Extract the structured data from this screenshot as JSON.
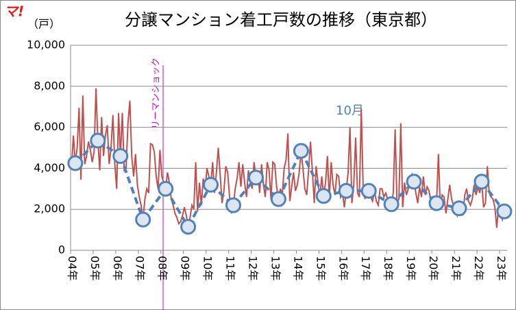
{
  "chart_data": {
    "type": "line",
    "title": "分譲マンション着工戸数の推移（東京都）",
    "logo": "マ!",
    "y_label": "（戸）",
    "annotation": "リーマンショック",
    "series_label": "10月",
    "categories": [
      "04年",
      null,
      null,
      null,
      null,
      null,
      null,
      null,
      null,
      null,
      null,
      null,
      "05年",
      null,
      null,
      null,
      null,
      null,
      null,
      null,
      null,
      null,
      null,
      null,
      "06年",
      null,
      null,
      null,
      null,
      null,
      null,
      null,
      null,
      null,
      null,
      null,
      "07年",
      null,
      null,
      null,
      null,
      null,
      null,
      null,
      null,
      null,
      null,
      null,
      "08年",
      null,
      null,
      null,
      null,
      null,
      null,
      null,
      null,
      null,
      null,
      null,
      "09年",
      null,
      null,
      null,
      null,
      null,
      null,
      null,
      null,
      null,
      null,
      null,
      "10年",
      null,
      null,
      null,
      null,
      null,
      null,
      null,
      null,
      null,
      null,
      null,
      "11年",
      null,
      null,
      null,
      null,
      null,
      null,
      null,
      null,
      null,
      null,
      null,
      "12年",
      null,
      null,
      null,
      null,
      null,
      null,
      null,
      null,
      null,
      null,
      null,
      "13年",
      null,
      null,
      null,
      null,
      null,
      null,
      null,
      null,
      null,
      null,
      null,
      "14年",
      null,
      null,
      null,
      null,
      null,
      null,
      null,
      null,
      null,
      null,
      null,
      "15年",
      null,
      null,
      null,
      null,
      null,
      null,
      null,
      null,
      null,
      null,
      null,
      "16年",
      null,
      null,
      null,
      null,
      null,
      null,
      null,
      null,
      null,
      null,
      null,
      "17年",
      null,
      null,
      null,
      null,
      null,
      null,
      null,
      null,
      null,
      null,
      null,
      "18年",
      null,
      null,
      null,
      null,
      null,
      null,
      null,
      null,
      null,
      null,
      null,
      "19年",
      null,
      null,
      null,
      null,
      null,
      null,
      null,
      null,
      null,
      null,
      null,
      "20年",
      null,
      null,
      null,
      null,
      null,
      null,
      null,
      null,
      null,
      null,
      null,
      "21年",
      null,
      null,
      null,
      null,
      null,
      null,
      null,
      null,
      null,
      null,
      null,
      "22年",
      null,
      null,
      null,
      null,
      null,
      null,
      null,
      null,
      null,
      null,
      null,
      "23年",
      null,
      null,
      null
    ],
    "series": [
      {
        "color": "#c0504d",
        "values": [
          4100,
          5600,
          4250,
          5000,
          6950,
          3450,
          7550,
          4200,
          4600,
          5300,
          4900,
          4300,
          4800,
          7900,
          5350,
          3900,
          6500,
          4600,
          5600,
          6100,
          4200,
          5000,
          6600,
          4200,
          3000,
          6700,
          4600,
          6700,
          3900,
          4000,
          6200,
          7300,
          4600,
          3600,
          4700,
          3200,
          2600,
          2200,
          1500,
          2500,
          3000,
          2800,
          5200,
          5150,
          4800,
          3600,
          3000,
          4900,
          3600,
          3300,
          3000,
          3800,
          3300,
          2500,
          2200,
          1800,
          1600,
          1300,
          1400,
          1700,
          2100,
          1700,
          1150,
          1600,
          2200,
          2000,
          4300,
          1900,
          3300,
          2200,
          3500,
          3000,
          4000,
          3600,
          3200,
          4300,
          2800,
          3800,
          5000,
          3700,
          2300,
          2900,
          4100,
          3800,
          2600,
          1800,
          2200,
          3000,
          3500,
          4300,
          3100,
          4200,
          3300,
          2600,
          3900,
          3400,
          3000,
          4300,
          3550,
          3800,
          2800,
          4200,
          3200,
          2600,
          4300,
          3900,
          2500,
          4300,
          4200,
          3100,
          2500,
          3000,
          2700,
          4000,
          4400,
          5700,
          2400,
          3100,
          3800,
          2900,
          3200,
          3800,
          4850,
          4000,
          3000,
          2700,
          3900,
          5300,
          3900,
          2300,
          4100,
          3300,
          2600,
          3600,
          2650,
          3300,
          4600,
          2500,
          4300,
          3200,
          2700,
          3700,
          3600,
          2600,
          2800,
          2100,
          2900,
          3800,
          6000,
          2300,
          3200,
          5500,
          2800,
          2600,
          6900,
          3000,
          2500,
          3200,
          2900,
          2600,
          2400,
          2900,
          2400,
          2200,
          3000,
          3000,
          2600,
          2800,
          2500,
          2200,
          2250,
          2800,
          5900,
          2300,
          2500,
          6200,
          2100,
          3300,
          2700,
          3000,
          3400,
          3700,
          3350,
          2800,
          2300,
          3100,
          2600,
          3600,
          2700,
          3100,
          2900,
          2400,
          2600,
          2400,
          2300,
          4700,
          2100,
          2700,
          2600,
          1800,
          2500,
          3200,
          2500,
          2200,
          2000,
          1700,
          2050,
          2200,
          1700,
          2700,
          3000,
          2400,
          2200,
          2500,
          3200,
          2700,
          3100,
          2800,
          3350,
          2100,
          2300,
          4100,
          2800,
          2600,
          2500,
          2100,
          1100,
          2200,
          1800,
          1500,
          1900,
          2000
        ]
      },
      {
        "color": "#4f81bd",
        "values": [
          null,
          null,
          4250,
          null,
          null,
          null,
          null,
          null,
          null,
          null,
          null,
          null,
          null,
          null,
          5350,
          null,
          null,
          null,
          null,
          null,
          null,
          null,
          null,
          null,
          null,
          null,
          4600,
          null,
          null,
          null,
          null,
          null,
          null,
          null,
          null,
          null,
          null,
          null,
          1500,
          null,
          null,
          null,
          null,
          null,
          null,
          null,
          null,
          null,
          null,
          null,
          3000,
          null,
          null,
          null,
          null,
          null,
          null,
          null,
          null,
          null,
          null,
          null,
          1150,
          null,
          null,
          null,
          null,
          null,
          null,
          null,
          null,
          null,
          null,
          null,
          3200,
          null,
          null,
          null,
          null,
          null,
          null,
          null,
          null,
          null,
          null,
          null,
          2200,
          null,
          null,
          null,
          null,
          null,
          null,
          null,
          null,
          null,
          null,
          null,
          3550,
          null,
          null,
          null,
          null,
          null,
          null,
          null,
          null,
          null,
          null,
          null,
          2500,
          null,
          null,
          null,
          null,
          null,
          null,
          null,
          null,
          null,
          null,
          null,
          4850,
          null,
          null,
          null,
          null,
          null,
          null,
          null,
          null,
          null,
          null,
          null,
          2650,
          null,
          null,
          null,
          null,
          null,
          null,
          null,
          null,
          null,
          null,
          null,
          2900,
          null,
          null,
          null,
          null,
          null,
          null,
          null,
          null,
          null,
          null,
          null,
          2900,
          null,
          null,
          null,
          null,
          null,
          null,
          null,
          null,
          null,
          null,
          null,
          2250,
          null,
          null,
          null,
          null,
          null,
          null,
          null,
          null,
          null,
          null,
          null,
          3350,
          null,
          null,
          null,
          null,
          null,
          null,
          null,
          null,
          null,
          null,
          null,
          2300,
          null,
          null,
          null,
          null,
          null,
          null,
          null,
          null,
          null,
          null,
          null,
          2050,
          null,
          null,
          null,
          null,
          null,
          null,
          null,
          null,
          null,
          null,
          null,
          3350,
          null,
          null,
          null,
          null,
          null,
          null,
          null,
          null,
          null,
          null,
          null,
          1900,
          null
        ]
      }
    ],
    "ylim": [
      0,
      10000
    ],
    "yticks": [
      0,
      {
        "value": 2000,
        "label": "2,000"
      },
      {
        "value": 4000,
        "label": "4,000"
      },
      {
        "value": 6000,
        "label": "6,000"
      },
      {
        "value": 8000,
        "label": "8,000"
      },
      {
        "value": 10000,
        "label": "10,000"
      }
    ],
    "grid": true
  }
}
